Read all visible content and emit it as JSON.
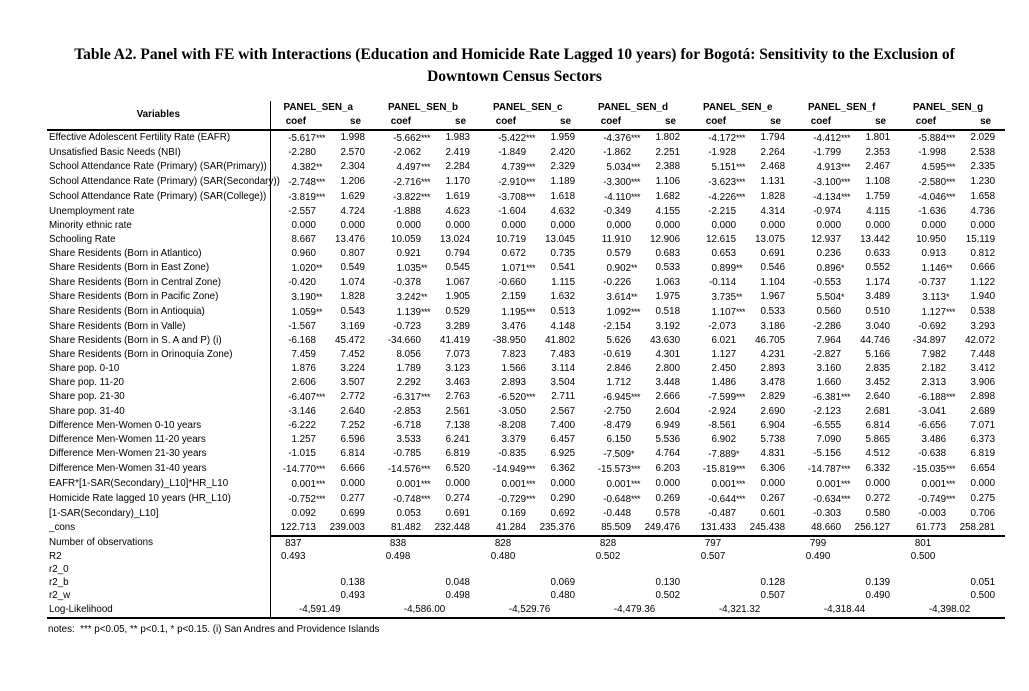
{
  "title": "Table A2. Panel with FE with Interactions (Education and Homicide Rate Lagged 10 years) for Bogotá: Sensitivity to the Exclusion of Downtown Census Sectors",
  "notes": "notes:  *** p<0.05, ** p<0.1, * p<0.15. (i) San Andres and Providence Islands",
  "table": {
    "variables_header": "Variables",
    "subheaders": {
      "coef": "coef",
      "se": "se"
    },
    "panels": [
      "PANEL_SEN_a",
      "PANEL_SEN_b",
      "PANEL_SEN_c",
      "PANEL_SEN_d",
      "PANEL_SEN_e",
      "PANEL_SEN_f",
      "PANEL_SEN_g"
    ],
    "rows": [
      {
        "label": "Effective Adolescent Fertility Rate (EAFR)",
        "cells": [
          [
            "-5.617***",
            "1.998"
          ],
          [
            "-5.662***",
            "1.983"
          ],
          [
            "-5.422***",
            "1.959"
          ],
          [
            "-4.376***",
            "1.802"
          ],
          [
            "-4.172***",
            "1.794"
          ],
          [
            "-4.412***",
            "1.801"
          ],
          [
            "-5.884***",
            "2.029"
          ]
        ]
      },
      {
        "label": "Unsatisfied Basic Needs (NBI)",
        "cells": [
          [
            "-2.280",
            "2.570"
          ],
          [
            "-2.062",
            "2.419"
          ],
          [
            "-1.849",
            "2.420"
          ],
          [
            "-1.862",
            "2.251"
          ],
          [
            "-1.928",
            "2.264"
          ],
          [
            "-1.799",
            "2.353"
          ],
          [
            "-1.998",
            "2.538"
          ]
        ]
      },
      {
        "label": "School Attendance Rate (Primary) (SAR(Primary))",
        "cells": [
          [
            "4.382**",
            "2.304"
          ],
          [
            "4.497***",
            "2.284"
          ],
          [
            "4.739***",
            "2.329"
          ],
          [
            "5.034***",
            "2.388"
          ],
          [
            "5.151***",
            "2.468"
          ],
          [
            "4.913***",
            "2.467"
          ],
          [
            "4.595***",
            "2.335"
          ]
        ]
      },
      {
        "label": "School Attendance Rate (Primary) (SAR(Secondary))",
        "cells": [
          [
            "-2.748***",
            "1.206"
          ],
          [
            "-2.716***",
            "1.170"
          ],
          [
            "-2.910***",
            "1.189"
          ],
          [
            "-3.300***",
            "1.106"
          ],
          [
            "-3.623***",
            "1.131"
          ],
          [
            "-3.100***",
            "1.108"
          ],
          [
            "-2.580***",
            "1.230"
          ]
        ]
      },
      {
        "label": "School Attendance Rate (Primary) (SAR(College))",
        "cells": [
          [
            "-3.819***",
            "1.629"
          ],
          [
            "-3.822***",
            "1.619"
          ],
          [
            "-3.708***",
            "1.618"
          ],
          [
            "-4.110***",
            "1.682"
          ],
          [
            "-4.226***",
            "1.828"
          ],
          [
            "-4.134***",
            "1.759"
          ],
          [
            "-4.046***",
            "1.658"
          ]
        ]
      },
      {
        "label": "Unemployment rate",
        "cells": [
          [
            "-2.557",
            "4.724"
          ],
          [
            "-1.888",
            "4.623"
          ],
          [
            "-1.604",
            "4.632"
          ],
          [
            "-0.349",
            "4.155"
          ],
          [
            "-2.215",
            "4.314"
          ],
          [
            "-0.974",
            "4.115"
          ],
          [
            "-1.636",
            "4.736"
          ]
        ]
      },
      {
        "label": "Minority ethnic rate",
        "cells": [
          [
            "0.000",
            "0.000"
          ],
          [
            "0.000",
            "0.000"
          ],
          [
            "0.000",
            "0.000"
          ],
          [
            "0.000",
            "0.000"
          ],
          [
            "0.000",
            "0.000"
          ],
          [
            "0.000",
            "0.000"
          ],
          [
            "0.000",
            "0.000"
          ]
        ]
      },
      {
        "label": "Schooling Rate",
        "cells": [
          [
            "8.667",
            "13.476"
          ],
          [
            "10.059",
            "13.024"
          ],
          [
            "10.719",
            "13.045"
          ],
          [
            "11.910",
            "12.906"
          ],
          [
            "12.615",
            "13.075"
          ],
          [
            "12.937",
            "13.442"
          ],
          [
            "10.950",
            "15.119"
          ]
        ]
      },
      {
        "label": "Share Residents (Born in Atlantico)",
        "cells": [
          [
            "0.960",
            "0.807"
          ],
          [
            "0.921",
            "0.794"
          ],
          [
            "0.672",
            "0.735"
          ],
          [
            "0.579",
            "0.683"
          ],
          [
            "0.653",
            "0.691"
          ],
          [
            "0.236",
            "0.633"
          ],
          [
            "0.913",
            "0.812"
          ]
        ]
      },
      {
        "label": "Share Residents (Born in East Zone)",
        "cells": [
          [
            "1.020**",
            "0.549"
          ],
          [
            "1.035**",
            "0.545"
          ],
          [
            "1.071***",
            "0.541"
          ],
          [
            "0.902**",
            "0.533"
          ],
          [
            "0.899**",
            "0.546"
          ],
          [
            "0.896*",
            "0.552"
          ],
          [
            "1.146**",
            "0.666"
          ]
        ]
      },
      {
        "label": "Share Residents (Born in Central Zone)",
        "cells": [
          [
            "-0.420",
            "1.074"
          ],
          [
            "-0.378",
            "1.067"
          ],
          [
            "-0.660",
            "1.115"
          ],
          [
            "-0.226",
            "1.063"
          ],
          [
            "-0.114",
            "1.104"
          ],
          [
            "-0.553",
            "1.174"
          ],
          [
            "-0.737",
            "1.122"
          ]
        ]
      },
      {
        "label": "Share Residents (Born in Pacific Zone)",
        "cells": [
          [
            "3.190**",
            "1.828"
          ],
          [
            "3.242**",
            "1.905"
          ],
          [
            "2.159",
            "1.632"
          ],
          [
            "3.614**",
            "1.975"
          ],
          [
            "3.735**",
            "1.967"
          ],
          [
            "5.504*",
            "3.489"
          ],
          [
            "3.113*",
            "1.940"
          ]
        ]
      },
      {
        "label": "Share Residents (Born in Antioquia)",
        "cells": [
          [
            "1.059**",
            "0.543"
          ],
          [
            "1.139***",
            "0.529"
          ],
          [
            "1.195***",
            "0.513"
          ],
          [
            "1.092***",
            "0.518"
          ],
          [
            "1.107***",
            "0.533"
          ],
          [
            "0.560",
            "0.510"
          ],
          [
            "1.127***",
            "0.538"
          ]
        ]
      },
      {
        "label": "Share Residents (Born in Valle)",
        "cells": [
          [
            "-1.567",
            "3.169"
          ],
          [
            "-0.723",
            "3.289"
          ],
          [
            "3.476",
            "4.148"
          ],
          [
            "-2.154",
            "3.192"
          ],
          [
            "-2.073",
            "3.186"
          ],
          [
            "-2.286",
            "3.040"
          ],
          [
            "-0.692",
            "3.293"
          ]
        ]
      },
      {
        "label": "Share Residents (Born in S. A and P) (i)",
        "cells": [
          [
            "-6.168",
            "45.472"
          ],
          [
            "-34.660",
            "41.419"
          ],
          [
            "-38.950",
            "41.802"
          ],
          [
            "5.626",
            "43.630"
          ],
          [
            "6.021",
            "46.705"
          ],
          [
            "7.964",
            "44.746"
          ],
          [
            "-34.897",
            "42.072"
          ]
        ]
      },
      {
        "label": "Share Residents (Born in Orinoquía Zone)",
        "cells": [
          [
            "7.459",
            "7.452"
          ],
          [
            "8.056",
            "7.073"
          ],
          [
            "7.823",
            "7.483"
          ],
          [
            "-0.619",
            "4.301"
          ],
          [
            "1.127",
            "4.231"
          ],
          [
            "-2.827",
            "5.166"
          ],
          [
            "7.982",
            "7.448"
          ]
        ]
      },
      {
        "label": "Share pop. 0-10",
        "cells": [
          [
            "1.876",
            "3.224"
          ],
          [
            "1.789",
            "3.123"
          ],
          [
            "1.566",
            "3.114"
          ],
          [
            "2.846",
            "2.800"
          ],
          [
            "2.450",
            "2.893"
          ],
          [
            "3.160",
            "2.835"
          ],
          [
            "2.182",
            "3.412"
          ]
        ]
      },
      {
        "label": "Share pop. 11-20",
        "cells": [
          [
            "2.606",
            "3.507"
          ],
          [
            "2.292",
            "3.463"
          ],
          [
            "2.893",
            "3.504"
          ],
          [
            "1.712",
            "3.448"
          ],
          [
            "1.486",
            "3.478"
          ],
          [
            "1.660",
            "3.452"
          ],
          [
            "2.313",
            "3.906"
          ]
        ]
      },
      {
        "label": "Share pop. 21-30",
        "cells": [
          [
            "-6.407***",
            "2.772"
          ],
          [
            "-6.317***",
            "2.763"
          ],
          [
            "-6.520***",
            "2.711"
          ],
          [
            "-6.945***",
            "2.666"
          ],
          [
            "-7.599***",
            "2.829"
          ],
          [
            "-6.381***",
            "2.640"
          ],
          [
            "-6.188***",
            "2.898"
          ]
        ]
      },
      {
        "label": "Share pop. 31-40",
        "cells": [
          [
            "-3.146",
            "2.640"
          ],
          [
            "-2.853",
            "2.561"
          ],
          [
            "-3.050",
            "2.567"
          ],
          [
            "-2.750",
            "2.604"
          ],
          [
            "-2.924",
            "2.690"
          ],
          [
            "-2.123",
            "2.681"
          ],
          [
            "-3.041",
            "2.689"
          ]
        ]
      },
      {
        "label": "Difference Men-Women 0-10 years",
        "cells": [
          [
            "-6.222",
            "7.252"
          ],
          [
            "-6.718",
            "7.138"
          ],
          [
            "-8.208",
            "7.400"
          ],
          [
            "-8.479",
            "6.949"
          ],
          [
            "-8.561",
            "6.904"
          ],
          [
            "-6.555",
            "6.814"
          ],
          [
            "-6.656",
            "7.071"
          ]
        ]
      },
      {
        "label": "Difference Men-Women 11-20 years",
        "cells": [
          [
            "1.257",
            "6.596"
          ],
          [
            "3.533",
            "6.241"
          ],
          [
            "3.379",
            "6.457"
          ],
          [
            "6.150",
            "5.536"
          ],
          [
            "6.902",
            "5.738"
          ],
          [
            "7.090",
            "5.865"
          ],
          [
            "3.486",
            "6.373"
          ]
        ]
      },
      {
        "label": "Difference Men-Women 21-30 years",
        "cells": [
          [
            "-1.015",
            "6.814"
          ],
          [
            "-0.785",
            "6.819"
          ],
          [
            "-0.835",
            "6.925"
          ],
          [
            "-7.509*",
            "4.764"
          ],
          [
            "-7.889*",
            "4.831"
          ],
          [
            "-5.156",
            "4.512"
          ],
          [
            "-0.638",
            "6.819"
          ]
        ]
      },
      {
        "label": "Difference Men-Women 31-40 years",
        "cells": [
          [
            "-14.770***",
            "6.666"
          ],
          [
            "-14.576***",
            "6.520"
          ],
          [
            "-14.949***",
            "6.362"
          ],
          [
            "-15.573***",
            "6.203"
          ],
          [
            "-15.819***",
            "6.306"
          ],
          [
            "-14.787***",
            "6.332"
          ],
          [
            "-15.035***",
            "6.654"
          ]
        ]
      },
      {
        "label": "EAFR*[1-SAR(Secondary)_L10]*HR_L10",
        "cells": [
          [
            "0.001***",
            "0.000"
          ],
          [
            "0.001***",
            "0.000"
          ],
          [
            "0.001***",
            "0.000"
          ],
          [
            "0.001***",
            "0.000"
          ],
          [
            "0.001***",
            "0.000"
          ],
          [
            "0.001***",
            "0.000"
          ],
          [
            "0.001***",
            "0.000"
          ]
        ]
      },
      {
        "label": "Homicide Rate lagged 10 years (HR_L10)",
        "cells": [
          [
            "-0.752***",
            "0.277"
          ],
          [
            "-0.748***",
            "0.274"
          ],
          [
            "-0.729***",
            "0.290"
          ],
          [
            "-0.648***",
            "0.269"
          ],
          [
            "-0.644***",
            "0.267"
          ],
          [
            "-0.634***",
            "0.272"
          ],
          [
            "-0.749***",
            "0.275"
          ]
        ]
      },
      {
        "label": "[1-SAR(Secondary)_L10]",
        "cells": [
          [
            "0.092",
            "0.699"
          ],
          [
            "0.053",
            "0.691"
          ],
          [
            "0.169",
            "0.692"
          ],
          [
            "-0.448",
            "0.578"
          ],
          [
            "-0.487",
            "0.601"
          ],
          [
            "-0.303",
            "0.580"
          ],
          [
            "-0.003",
            "0.706"
          ]
        ]
      },
      {
        "label": "_cons",
        "cells": [
          [
            "122.713",
            "239.003"
          ],
          [
            "81.482",
            "232.448"
          ],
          [
            "41.284",
            "235.376"
          ],
          [
            "85.509",
            "249.476"
          ],
          [
            "131.433",
            "245.438"
          ],
          [
            "48.660",
            "256.127"
          ],
          [
            "61.773",
            "258.281"
          ]
        ]
      }
    ],
    "summary": [
      {
        "label": "Number of observations",
        "placement": "coef-center",
        "values": [
          "837",
          "838",
          "828",
          "828",
          "797",
          "799",
          "801"
        ]
      },
      {
        "label": "R2",
        "placement": "coef-center",
        "values": [
          "0.493",
          "0.498",
          "0.480",
          "0.502",
          "0.507",
          "0.490",
          "0.500"
        ]
      },
      {
        "label": "r2_0",
        "placement": "coef-center",
        "values": [
          "",
          "",
          "",
          "",
          "",
          "",
          ""
        ]
      },
      {
        "label": "r2_b",
        "placement": "se-right",
        "values": [
          "0.138",
          "0.048",
          "0.069",
          "0.130",
          "0.128",
          "0.139",
          "0.051"
        ]
      },
      {
        "label": "r2_w",
        "placement": "se-right",
        "values": [
          "0.493",
          "0.498",
          "0.480",
          "0.502",
          "0.507",
          "0.490",
          "0.500"
        ]
      },
      {
        "label": "Log-Likelihood",
        "placement": "pair-center",
        "values": [
          "-4,591.49",
          "-4,586.00",
          "-4,529.76",
          "-4,479.36",
          "-4,321.32",
          "-4,318.44",
          "-4,398.02"
        ]
      }
    ]
  }
}
